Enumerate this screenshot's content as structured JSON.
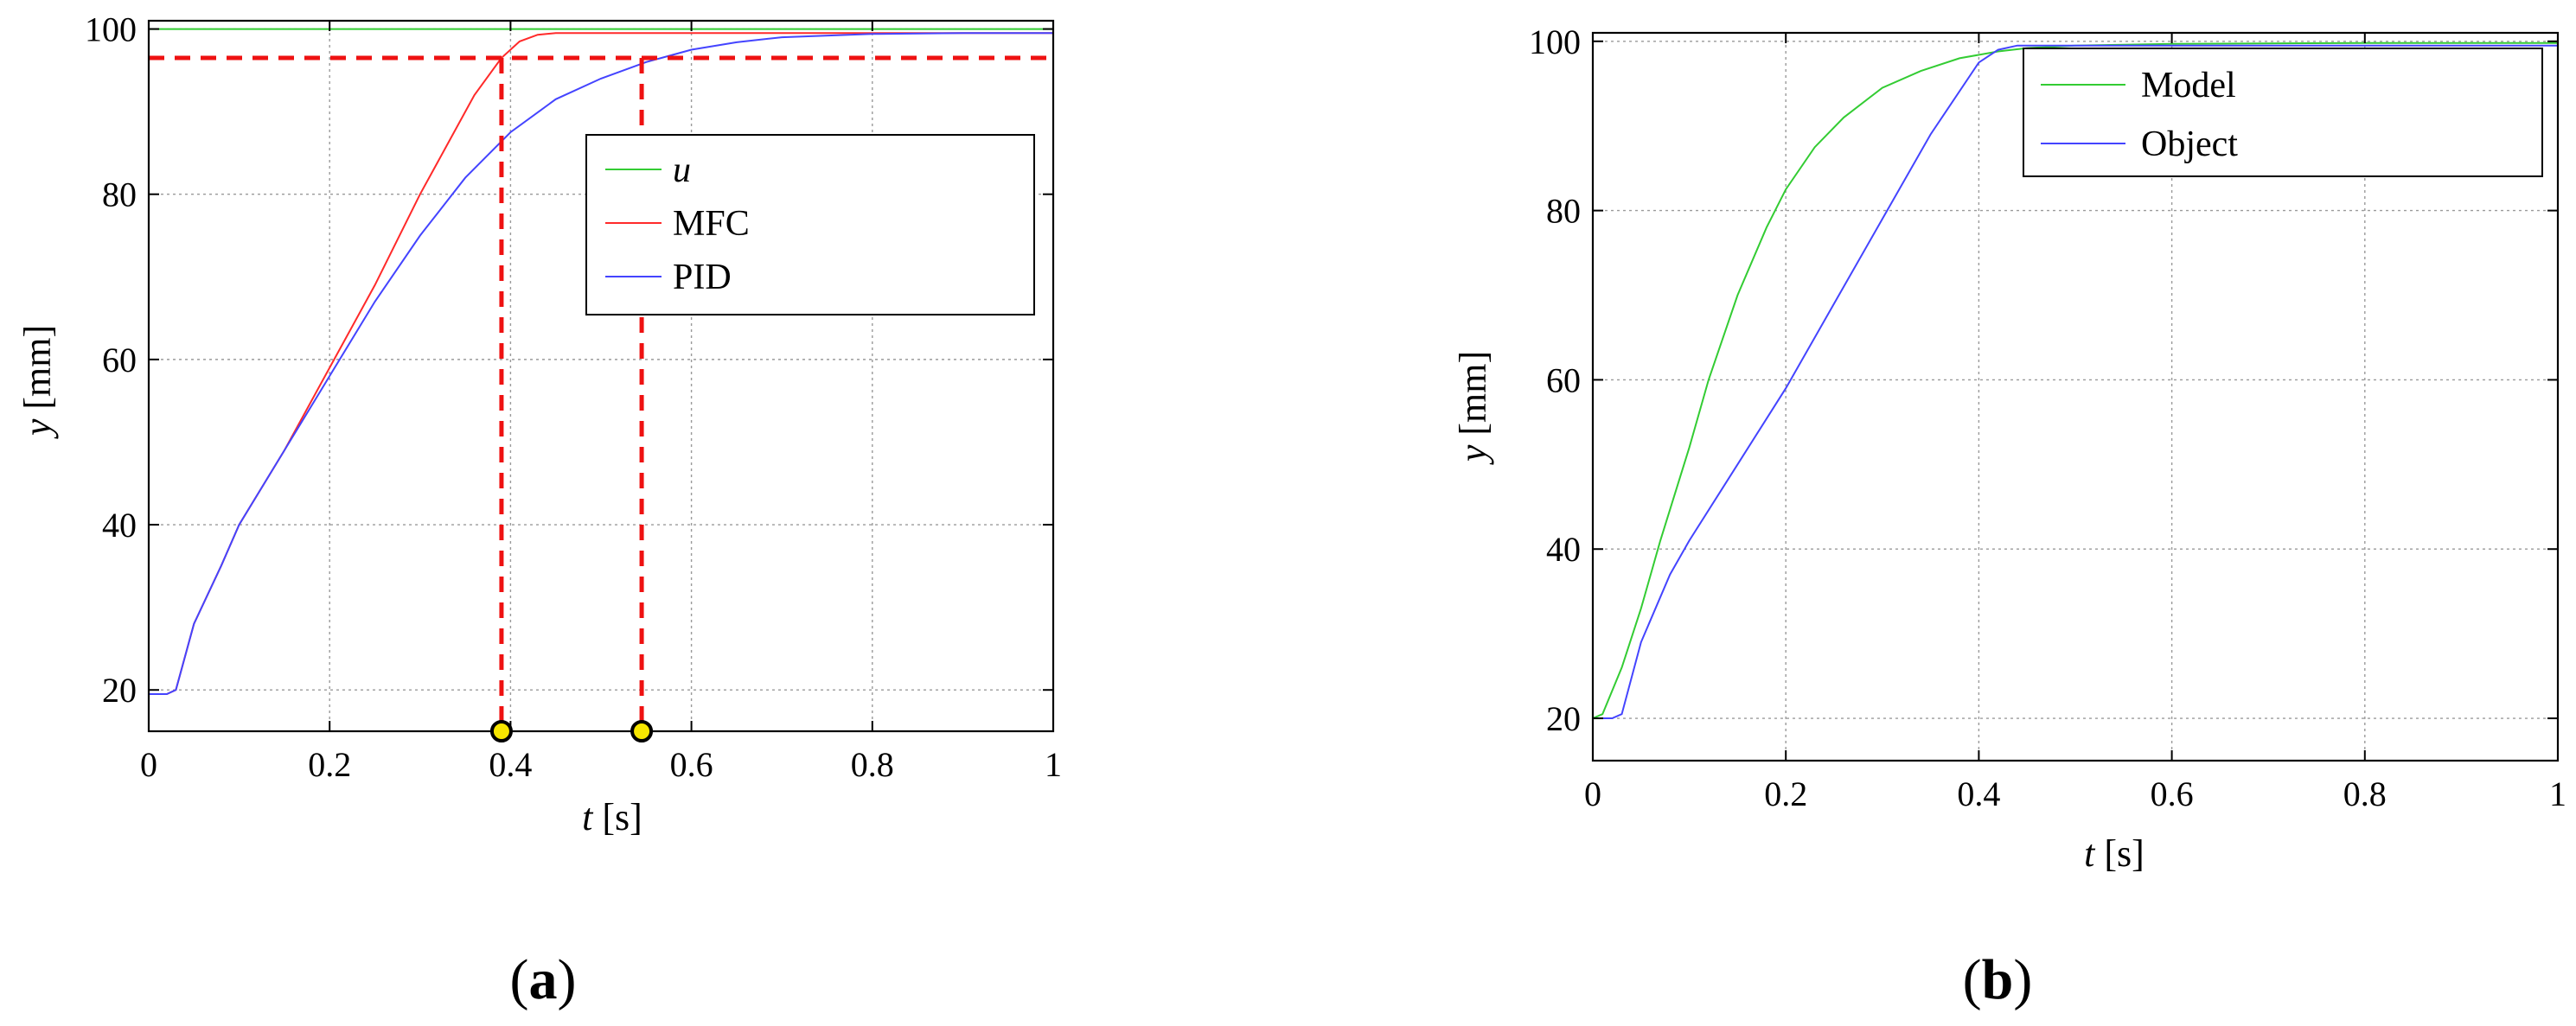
{
  "chart_data": [
    {
      "id": "a",
      "type": "line",
      "panel_label_open": "(",
      "panel_label": "a",
      "panel_label_close": ")",
      "xlabel_var": "t",
      "xlabel_unit": " [s]",
      "ylabel_var": "y",
      "ylabel_unit": " [mm]",
      "xlim": [
        0,
        1
      ],
      "ylim": [
        15,
        101
      ],
      "xticks": [
        0,
        0.2,
        0.4,
        0.6,
        0.8,
        1
      ],
      "xtick_labels": [
        "0",
        "0.2",
        "0.4",
        "0.6",
        "0.8",
        "1"
      ],
      "yticks": [
        20,
        40,
        60,
        80,
        100
      ],
      "ytick_labels": [
        "20",
        "40",
        "60",
        "80",
        "100"
      ],
      "grid": true,
      "legend_position": "top-right",
      "series": [
        {
          "name": "u",
          "italic": true,
          "color": "#33cc33",
          "x": [
            0,
            1
          ],
          "y": [
            100,
            100
          ]
        },
        {
          "name": "MFC",
          "italic": false,
          "color": "#ff2a2a",
          "x": [
            0,
            0.02,
            0.03,
            0.05,
            0.08,
            0.1,
            0.15,
            0.2,
            0.25,
            0.3,
            0.33,
            0.36,
            0.39,
            0.41,
            0.43,
            0.45,
            0.5,
            0.6,
            0.8,
            1
          ],
          "y": [
            19.5,
            19.5,
            20,
            28,
            35,
            40,
            49,
            59,
            69,
            80,
            86,
            92,
            96.5,
            98.5,
            99.3,
            99.5,
            99.5,
            99.5,
            99.5,
            99.5
          ]
        },
        {
          "name": "PID",
          "italic": false,
          "color": "#4444ff",
          "x": [
            0,
            0.02,
            0.03,
            0.05,
            0.08,
            0.1,
            0.15,
            0.2,
            0.25,
            0.3,
            0.35,
            0.4,
            0.45,
            0.5,
            0.55,
            0.6,
            0.65,
            0.7,
            0.8,
            0.9,
            1
          ],
          "y": [
            19.5,
            19.5,
            20,
            28,
            35,
            40,
            49,
            58,
            67,
            75,
            82,
            87.5,
            91.5,
            94,
            96,
            97.5,
            98.4,
            99,
            99.4,
            99.5,
            99.5
          ]
        }
      ],
      "reference_lines": {
        "color": "#ee1111",
        "horizontal_y": 96.5,
        "vertical_x": [
          0.39,
          0.545
        ]
      },
      "markers": {
        "fill": "#f7e600",
        "stroke": "#000000",
        "points": [
          {
            "x": 0.39,
            "y": 15
          },
          {
            "x": 0.545,
            "y": 15
          }
        ]
      }
    },
    {
      "id": "b",
      "type": "line",
      "panel_label_open": "(",
      "panel_label": "b",
      "panel_label_close": ")",
      "xlabel_var": "t",
      "xlabel_unit": " [s]",
      "ylabel_var": "y",
      "ylabel_unit": " [mm]",
      "xlim": [
        0,
        1
      ],
      "ylim": [
        15,
        101
      ],
      "xticks": [
        0,
        0.2,
        0.4,
        0.6,
        0.8,
        1
      ],
      "xtick_labels": [
        "0",
        "0.2",
        "0.4",
        "0.6",
        "0.8",
        "1"
      ],
      "yticks": [
        20,
        40,
        60,
        80,
        100
      ],
      "ytick_labels": [
        "20",
        "40",
        "60",
        "80",
        "100"
      ],
      "grid": true,
      "legend_position": "top-right",
      "series": [
        {
          "name": "Model",
          "italic": false,
          "color": "#33cc33",
          "x": [
            0,
            0.01,
            0.03,
            0.05,
            0.07,
            0.1,
            0.12,
            0.15,
            0.18,
            0.2,
            0.23,
            0.26,
            0.3,
            0.34,
            0.38,
            0.42,
            0.45,
            0.5,
            0.6,
            0.8,
            1
          ],
          "y": [
            20,
            20.5,
            26,
            33,
            41,
            52,
            60,
            70,
            78,
            82.5,
            87.5,
            91,
            94.5,
            96.5,
            98,
            98.8,
            99.2,
            99.5,
            99.7,
            99.8,
            99.8
          ]
        },
        {
          "name": "Object",
          "italic": false,
          "color": "#4444ff",
          "x": [
            0,
            0.02,
            0.03,
            0.05,
            0.08,
            0.1,
            0.15,
            0.2,
            0.25,
            0.3,
            0.35,
            0.4,
            0.42,
            0.44,
            0.46,
            0.5,
            0.6,
            0.8,
            1
          ],
          "y": [
            20,
            20,
            20.5,
            29,
            37,
            41,
            50,
            59,
            69,
            79,
            89,
            97.5,
            99,
            99.5,
            99.5,
            99.5,
            99.5,
            99.5,
            99.5
          ]
        }
      ]
    }
  ]
}
